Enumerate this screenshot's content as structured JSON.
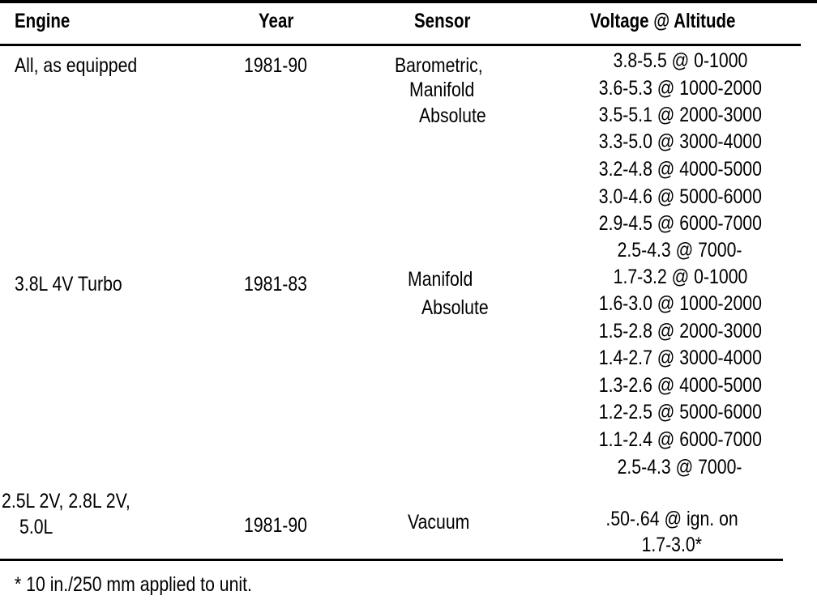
{
  "table": {
    "headers": [
      "Engine",
      "Year",
      "Sensor",
      "Voltage @ Altitude"
    ],
    "rows": [
      {
        "engine": [
          "All, as equipped"
        ],
        "year": "1981-90",
        "sensor": [
          "Barometric,",
          "Manifold",
          "Absolute"
        ],
        "voltage": [
          "3.8-5.5 @ 0-1000",
          "3.6-5.3 @ 1000-2000",
          "3.5-5.1 @ 2000-3000",
          "3.3-5.0 @ 3000-4000",
          "3.2-4.8 @ 4000-5000",
          "3.0-4.6 @ 5000-6000",
          "2.9-4.5 @ 6000-7000",
          "2.5-4.3 @ 7000-"
        ]
      },
      {
        "engine": [
          "3.8L 4V Turbo"
        ],
        "year": "1981-83",
        "sensor": [
          "Manifold",
          "Absolute"
        ],
        "voltage": [
          "1.7-3.2 @ 0-1000",
          "1.6-3.0 @ 1000-2000",
          "1.5-2.8 @ 2000-3000",
          "1.4-2.7 @ 3000-4000",
          "1.3-2.6 @ 4000-5000",
          "1.2-2.5 @ 5000-6000",
          "1.1-2.4 @ 6000-7000",
          "2.5-4.3 @ 7000-"
        ]
      },
      {
        "engine": [
          "2.5L 2V, 2.8L 2V,",
          "5.0L"
        ],
        "year": "1981-90",
        "sensor": [
          "Vacuum"
        ],
        "voltage": [
          ".50-.64 @ ign. on",
          "1.7-3.0*"
        ]
      }
    ],
    "footnote": "*  10 in./250 mm applied to unit."
  }
}
